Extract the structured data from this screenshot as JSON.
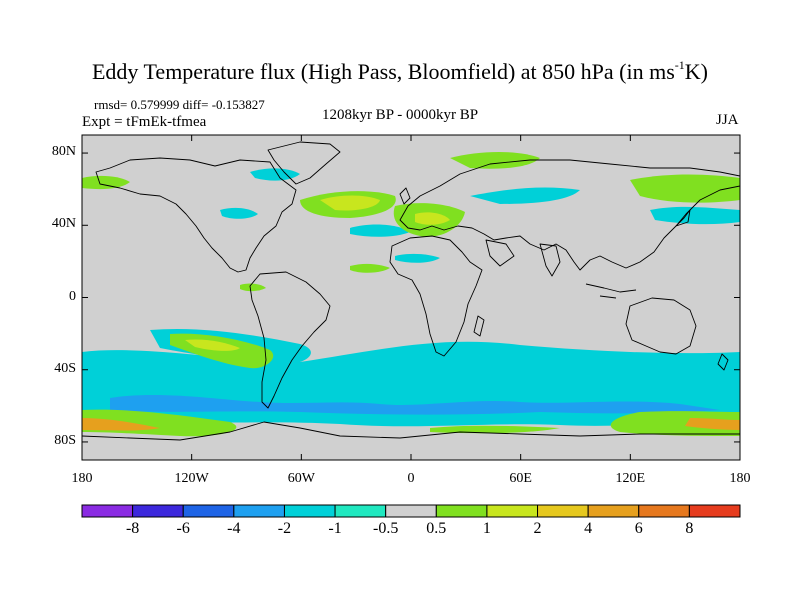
{
  "title": {
    "main_prefix": "Eddy Temperature flux (High Pass, Bloomfield) at 850 hPa (in ms",
    "main_sup": "-1",
    "main_suffix": "K)"
  },
  "stats": "rmsd= 0.579999 diff= -0.153827",
  "expt": "Expt = tFmEk-tfmea",
  "period": "1208kyr BP - 0000kyr BP",
  "season": "JJA",
  "map": {
    "type": "filled-contour",
    "projection": "cylindrical-equidistant",
    "lon_range": [
      -180,
      180
    ],
    "lat_range": [
      -90,
      90
    ],
    "y_ticks": [
      "80N",
      "40N",
      "0",
      "40S",
      "80S"
    ],
    "x_ticks": [
      "180",
      "120W",
      "60W",
      "0",
      "60E",
      "120E",
      "180"
    ],
    "background_color": "#d0d0d0",
    "coast_color": "#000000"
  },
  "colorbar": {
    "colors": [
      "#8a2be2",
      "#3c28dc",
      "#1e64e6",
      "#1ea0f0",
      "#00d0d8",
      "#20e8c0",
      "#d0d0d0",
      "#80e020",
      "#c8e61e",
      "#e6c81e",
      "#e6a01e",
      "#e6781e",
      "#e63c1e"
    ],
    "labels": [
      "-8",
      "-6",
      "-4",
      "-2",
      "-1",
      "-0.5",
      "0.5",
      "1",
      "2",
      "4",
      "6",
      "8"
    ]
  }
}
